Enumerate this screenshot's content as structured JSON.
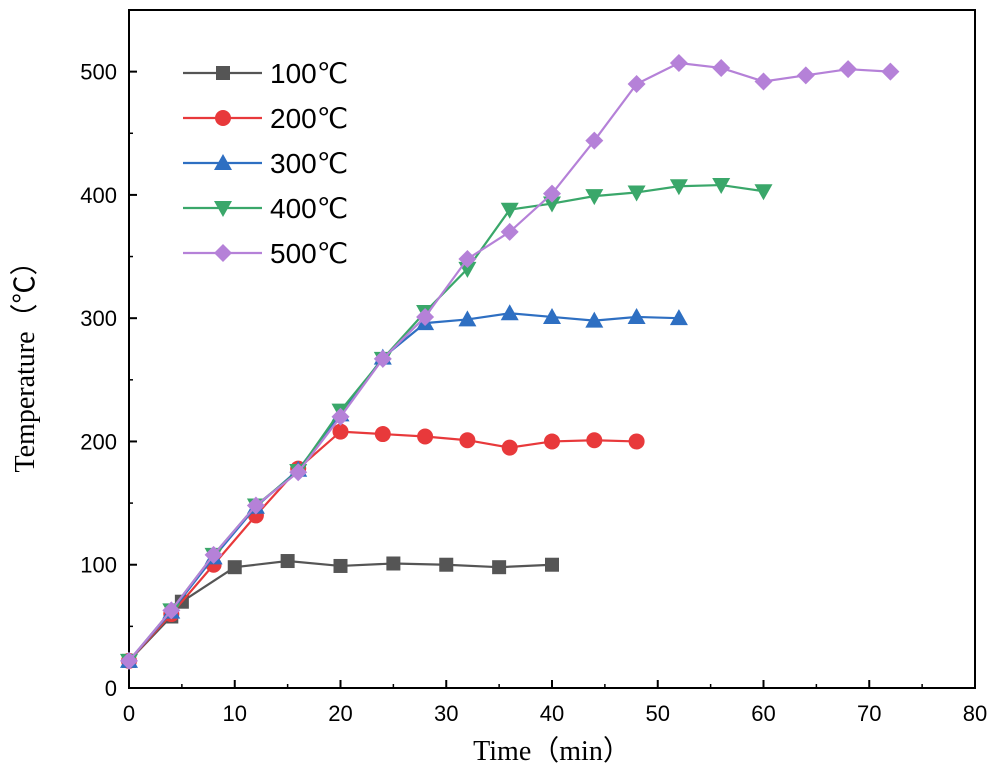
{
  "chart_data": {
    "type": "line",
    "title": "",
    "xlabel": "Time（min）",
    "ylabel": "Temperature（℃）",
    "xlim": [
      0,
      80
    ],
    "ylim": [
      0,
      550
    ],
    "xticks": [
      0,
      10,
      20,
      30,
      40,
      50,
      60,
      70,
      80
    ],
    "yticks": [
      0,
      100,
      200,
      300,
      400,
      500
    ],
    "grid": false,
    "legend_position": "top-left",
    "series": [
      {
        "name": "100℃",
        "color": "#555555",
        "marker": "square",
        "x": [
          0,
          4,
          5,
          10,
          15,
          20,
          25,
          30,
          35,
          40
        ],
        "y": [
          22,
          58,
          70,
          98,
          103,
          99,
          101,
          100,
          98,
          100
        ]
      },
      {
        "name": "200℃",
        "color": "#e8393b",
        "marker": "circle",
        "x": [
          0,
          4,
          8,
          12,
          16,
          20,
          24,
          28,
          32,
          36,
          40,
          44,
          48
        ],
        "y": [
          22,
          60,
          100,
          140,
          178,
          208,
          206,
          204,
          201,
          195,
          200,
          201,
          200
        ]
      },
      {
        "name": "300℃",
        "color": "#2e6fc2",
        "marker": "triangle-up",
        "x": [
          0,
          4,
          8,
          12,
          16,
          20,
          24,
          28,
          32,
          36,
          40,
          44,
          48,
          52
        ],
        "y": [
          22,
          62,
          106,
          147,
          177,
          222,
          268,
          296,
          299,
          304,
          301,
          298,
          301,
          300
        ]
      },
      {
        "name": "400℃",
        "color": "#3aa76a",
        "marker": "triangle-down",
        "x": [
          0,
          4,
          8,
          12,
          16,
          20,
          24,
          28,
          32,
          36,
          40,
          44,
          48,
          52,
          56,
          60
        ],
        "y": [
          22,
          63,
          108,
          148,
          176,
          225,
          267,
          305,
          340,
          388,
          393,
          399,
          402,
          407,
          408,
          403
        ]
      },
      {
        "name": "500℃",
        "color": "#b581d8",
        "marker": "diamond",
        "x": [
          0,
          4,
          8,
          12,
          16,
          20,
          24,
          28,
          32,
          36,
          40,
          44,
          48,
          52,
          56,
          60,
          64,
          68,
          72
        ],
        "y": [
          22,
          63,
          108,
          148,
          175,
          220,
          267,
          301,
          348,
          370,
          401,
          444,
          490,
          507,
          503,
          492,
          497,
          502,
          500
        ]
      }
    ]
  }
}
